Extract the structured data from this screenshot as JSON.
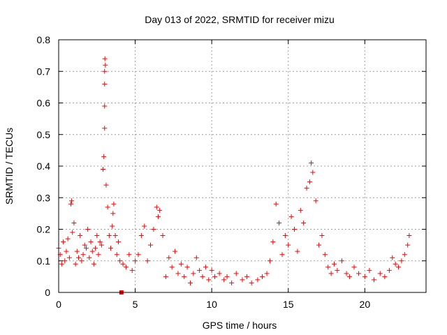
{
  "chart_data": {
    "type": "scatter",
    "title": "Day 013 of 2022, SRMTID for receiver mizu",
    "xlabel": "GPS time / hours",
    "ylabel": "SRMTID / TECUs",
    "xlim": [
      0,
      24
    ],
    "ylim": [
      0,
      0.8
    ],
    "x_ticks": [
      0,
      5,
      10,
      15,
      20
    ],
    "x_tick_labels": [
      "0",
      "5",
      "10",
      "15",
      "20"
    ],
    "y_ticks": [
      0,
      0.1,
      0.2,
      0.3,
      0.4,
      0.5,
      0.6,
      0.7,
      0.8
    ],
    "y_tick_labels": [
      "0",
      "0.1",
      "0.2",
      "0.3",
      "0.4",
      "0.5",
      "0.6",
      "0.7",
      "0.8"
    ],
    "grid": true,
    "marker": "plus",
    "colors": {
      "series": "#ff0000",
      "grid": "#a0a0a0",
      "axis": "#000000"
    },
    "series": [
      {
        "name": "SRMTID",
        "x": [
          0.0,
          0.1,
          0.2,
          0.3,
          0.4,
          0.5,
          0.6,
          0.7,
          0.8,
          0.85,
          0.9,
          1.0,
          1.1,
          1.2,
          1.3,
          1.4,
          1.5,
          1.6,
          1.7,
          1.8,
          1.9,
          2.0,
          2.1,
          2.2,
          2.3,
          2.4,
          2.5,
          2.6,
          2.7,
          2.8,
          2.9,
          2.95,
          3.0,
          3.0,
          3.0,
          3.0,
          3.02,
          3.05,
          3.1,
          3.2,
          3.3,
          3.4,
          3.5,
          3.55,
          3.6,
          3.7,
          3.8,
          3.9,
          4.0,
          4.2,
          4.4,
          4.6,
          4.8,
          5.0,
          5.2,
          5.4,
          5.6,
          5.8,
          6.0,
          6.2,
          6.4,
          6.5,
          6.6,
          6.8,
          7.0,
          7.2,
          7.4,
          7.6,
          7.8,
          8.0,
          8.2,
          8.4,
          8.6,
          8.8,
          9.0,
          9.2,
          9.4,
          9.6,
          9.8,
          10.0,
          10.2,
          10.5,
          10.8,
          11.0,
          11.3,
          11.6,
          12.0,
          12.3,
          12.6,
          13.0,
          13.3,
          13.6,
          13.8,
          14.0,
          14.2,
          14.4,
          14.6,
          14.8,
          15.0,
          15.2,
          15.4,
          15.6,
          15.8,
          16.0,
          16.2,
          16.4,
          16.5,
          16.6,
          16.8,
          17.0,
          17.2,
          17.4,
          17.6,
          17.8,
          18.0,
          18.2,
          18.5,
          18.8,
          19.0,
          19.3,
          19.6,
          20.0,
          20.3,
          20.6,
          21.0,
          21.3,
          21.6,
          21.8,
          22.0,
          22.2,
          22.4,
          22.6,
          22.8,
          22.9
        ],
        "values": [
          0.14,
          0.12,
          0.09,
          0.16,
          0.1,
          0.13,
          0.17,
          0.11,
          0.28,
          0.29,
          0.19,
          0.22,
          0.09,
          0.13,
          0.11,
          0.18,
          0.1,
          0.12,
          0.15,
          0.14,
          0.2,
          0.11,
          0.16,
          0.13,
          0.09,
          0.14,
          0.18,
          0.12,
          0.16,
          0.15,
          0.39,
          0.43,
          0.52,
          0.59,
          0.66,
          0.7,
          0.74,
          0.72,
          0.34,
          0.27,
          0.18,
          0.14,
          0.21,
          0.25,
          0.28,
          0.18,
          0.12,
          0.16,
          0.1,
          0.09,
          0.08,
          0.12,
          0.07,
          0.1,
          0.12,
          0.18,
          0.21,
          0.1,
          0.15,
          0.2,
          0.27,
          0.24,
          0.26,
          0.18,
          0.05,
          0.11,
          0.08,
          0.13,
          0.06,
          0.09,
          0.05,
          0.08,
          0.03,
          0.06,
          0.11,
          0.07,
          0.05,
          0.08,
          0.04,
          0.07,
          0.05,
          0.06,
          0.04,
          0.05,
          0.03,
          0.06,
          0.04,
          0.05,
          0.03,
          0.04,
          0.05,
          0.06,
          0.1,
          0.16,
          0.28,
          0.22,
          0.12,
          0.18,
          0.15,
          0.24,
          0.2,
          0.13,
          0.26,
          0.22,
          0.33,
          0.35,
          0.41,
          0.38,
          0.29,
          0.15,
          0.18,
          0.12,
          0.08,
          0.06,
          0.09,
          0.07,
          0.1,
          0.06,
          0.05,
          0.08,
          0.06,
          0.05,
          0.07,
          0.04,
          0.06,
          0.05,
          0.07,
          0.11,
          0.09,
          0.08,
          0.1,
          0.12,
          0.15,
          0.18
        ]
      }
    ],
    "annotations": [
      {
        "type": "square_marker",
        "x": 4.1,
        "y": 0.0,
        "color": "#ff0000"
      }
    ]
  }
}
